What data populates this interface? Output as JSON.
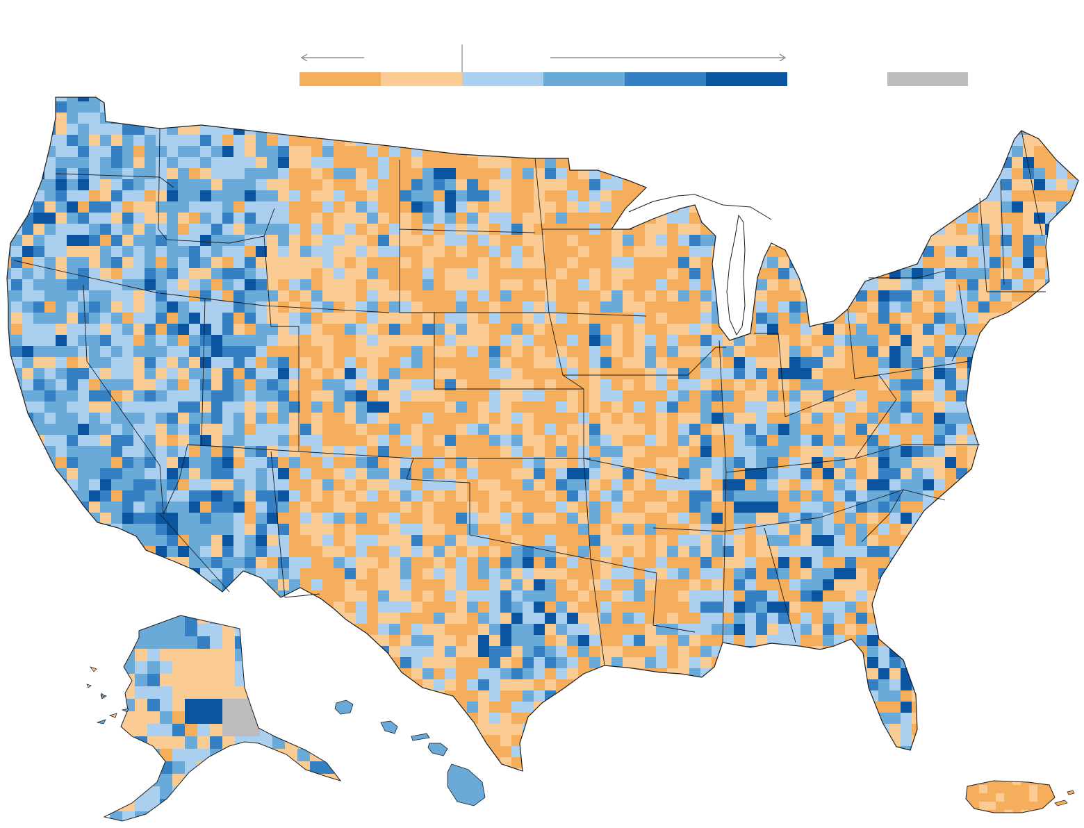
{
  "legend": {
    "bins": [
      {
        "id": "decline-large",
        "color": "#F4AE5C"
      },
      {
        "id": "decline-small",
        "color": "#FBCB94"
      },
      {
        "id": "growth-1",
        "color": "#ABCFEE"
      },
      {
        "id": "growth-2",
        "color": "#6AAAD8"
      },
      {
        "id": "growth-3",
        "color": "#3480C2"
      },
      {
        "id": "growth-4",
        "color": "#0A54A0"
      }
    ],
    "no_data_color": "#BDBBBE",
    "arrow_color": "#7A7A7A",
    "divider_color": "#8A8A8A"
  },
  "map": {
    "outline_color": "#1A1A1A",
    "regions": [
      "conterminous-us",
      "alaska",
      "hawaii",
      "puerto-rico"
    ]
  }
}
